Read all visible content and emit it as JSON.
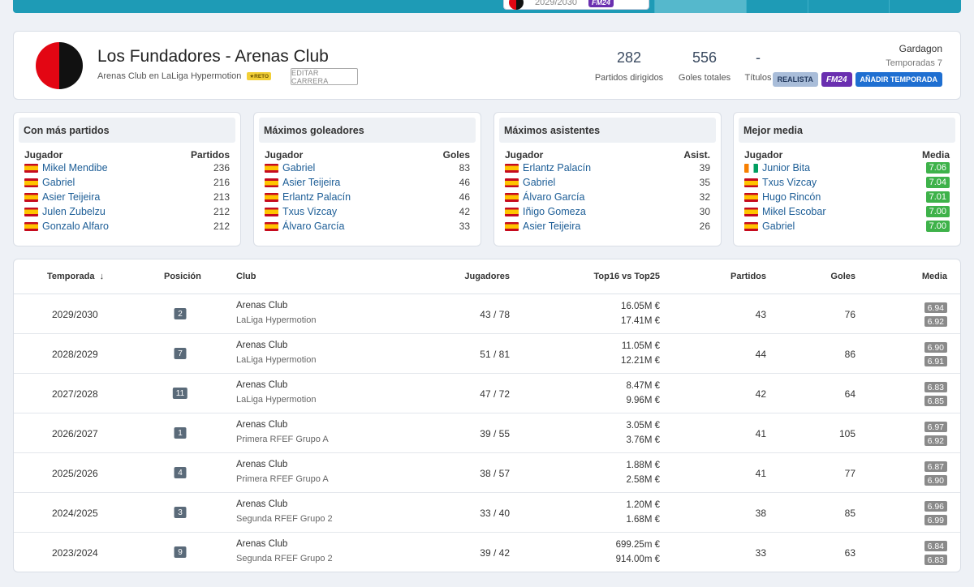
{
  "topbar": {
    "chip_season": "2029/2030",
    "chip_badge": "FM24"
  },
  "header": {
    "title": "Los Fundadores - Arenas Club",
    "subtitle": "Arenas Club en LaLiga Hypermotion",
    "reto_label": "★RETO",
    "edit_label": "EDITAR CARRERA",
    "stats": [
      {
        "value": "282",
        "label": "Partidos dirigidos"
      },
      {
        "value": "556",
        "label": "Goles totales"
      },
      {
        "value": "-",
        "label": "Títulos"
      }
    ],
    "user_name": "Gardagon",
    "seasons_label": "Temporadas 7",
    "badges": {
      "realista": "REALISTA",
      "fm24": "FM24",
      "add": "AÑADIR TEMPORADA"
    },
    "crest_colors": [
      "#e30613",
      "#111111"
    ]
  },
  "lists": [
    {
      "title": "Con más partidos",
      "col_player": "Jugador",
      "col_value": "Partidos",
      "rows": [
        {
          "flag": "es",
          "name": "Mikel Mendibe",
          "value": "236"
        },
        {
          "flag": "es",
          "name": "Gabriel",
          "value": "216"
        },
        {
          "flag": "es",
          "name": "Asier Teijeira",
          "value": "213"
        },
        {
          "flag": "es",
          "name": "Julen Zubelzu",
          "value": "212"
        },
        {
          "flag": "es",
          "name": "Gonzalo Alfaro",
          "value": "212"
        }
      ]
    },
    {
      "title": "Máximos goleadores",
      "col_player": "Jugador",
      "col_value": "Goles",
      "rows": [
        {
          "flag": "es",
          "name": "Gabriel",
          "value": "83"
        },
        {
          "flag": "es",
          "name": "Asier Teijeira",
          "value": "46"
        },
        {
          "flag": "es",
          "name": "Erlantz Palacín",
          "value": "46"
        },
        {
          "flag": "es",
          "name": "Txus Vizcay",
          "value": "42"
        },
        {
          "flag": "es",
          "name": "Álvaro García",
          "value": "33"
        }
      ]
    },
    {
      "title": "Máximos asistentes",
      "col_player": "Jugador",
      "col_value": "Asist.",
      "rows": [
        {
          "flag": "es",
          "name": "Erlantz Palacín",
          "value": "39"
        },
        {
          "flag": "es",
          "name": "Gabriel",
          "value": "35"
        },
        {
          "flag": "es",
          "name": "Álvaro García",
          "value": "32"
        },
        {
          "flag": "es",
          "name": "Iñigo Gomeza",
          "value": "30"
        },
        {
          "flag": "es",
          "name": "Asier Teijeira",
          "value": "26"
        }
      ]
    },
    {
      "title": "Mejor media",
      "col_player": "Jugador",
      "col_value": "Media",
      "rows": [
        {
          "flag": "ci",
          "name": "Junior Bita",
          "value": "7.06"
        },
        {
          "flag": "es",
          "name": "Txus Vizcay",
          "value": "7.04"
        },
        {
          "flag": "es",
          "name": "Hugo Rincón",
          "value": "7.01"
        },
        {
          "flag": "es",
          "name": "Mikel Escobar",
          "value": "7.00"
        },
        {
          "flag": "es",
          "name": "Gabriel",
          "value": "7.00"
        }
      ]
    }
  ],
  "table": {
    "headers": {
      "season": "Temporada",
      "position": "Posición",
      "club": "Club",
      "players": "Jugadores",
      "top": "Top16 vs Top25",
      "matches": "Partidos",
      "goals": "Goles",
      "avg": "Media"
    },
    "rows": [
      {
        "season": "2029/2030",
        "position": "2",
        "club": "Arenas Club",
        "league": "LaLiga Hypermotion",
        "players": "43 / 78",
        "top16": "16.05M €",
        "top25": "17.41M €",
        "matches": "43",
        "goals": "76",
        "avg1": "6.94",
        "avg2": "6.92"
      },
      {
        "season": "2028/2029",
        "position": "7",
        "club": "Arenas Club",
        "league": "LaLiga Hypermotion",
        "players": "51 / 81",
        "top16": "11.05M €",
        "top25": "12.21M €",
        "matches": "44",
        "goals": "86",
        "avg1": "6.90",
        "avg2": "6.91"
      },
      {
        "season": "2027/2028",
        "position": "11",
        "club": "Arenas Club",
        "league": "LaLiga Hypermotion",
        "players": "47 / 72",
        "top16": "8.47M €",
        "top25": "9.96M €",
        "matches": "42",
        "goals": "64",
        "avg1": "6.83",
        "avg2": "6.85"
      },
      {
        "season": "2026/2027",
        "position": "1",
        "club": "Arenas Club",
        "league": "Primera RFEF Grupo A",
        "players": "39 / 55",
        "top16": "3.05M €",
        "top25": "3.76M €",
        "matches": "41",
        "goals": "105",
        "avg1": "6.97",
        "avg2": "6.92"
      },
      {
        "season": "2025/2026",
        "position": "4",
        "club": "Arenas Club",
        "league": "Primera RFEF Grupo A",
        "players": "38 / 57",
        "top16": "1.88M €",
        "top25": "2.58M €",
        "matches": "41",
        "goals": "77",
        "avg1": "6.87",
        "avg2": "6.90"
      },
      {
        "season": "2024/2025",
        "position": "3",
        "club": "Arenas Club",
        "league": "Segunda RFEF Grupo 2",
        "players": "33 / 40",
        "top16": "1.20M €",
        "top25": "1.68M €",
        "matches": "38",
        "goals": "85",
        "avg1": "6.96",
        "avg2": "6.99"
      },
      {
        "season": "2023/2024",
        "position": "9",
        "club": "Arenas Club",
        "league": "Segunda RFEF Grupo 2",
        "players": "39 / 42",
        "top16": "699.25m €",
        "top25": "914.00m €",
        "matches": "33",
        "goals": "63",
        "avg1": "6.84",
        "avg2": "6.83"
      }
    ]
  }
}
